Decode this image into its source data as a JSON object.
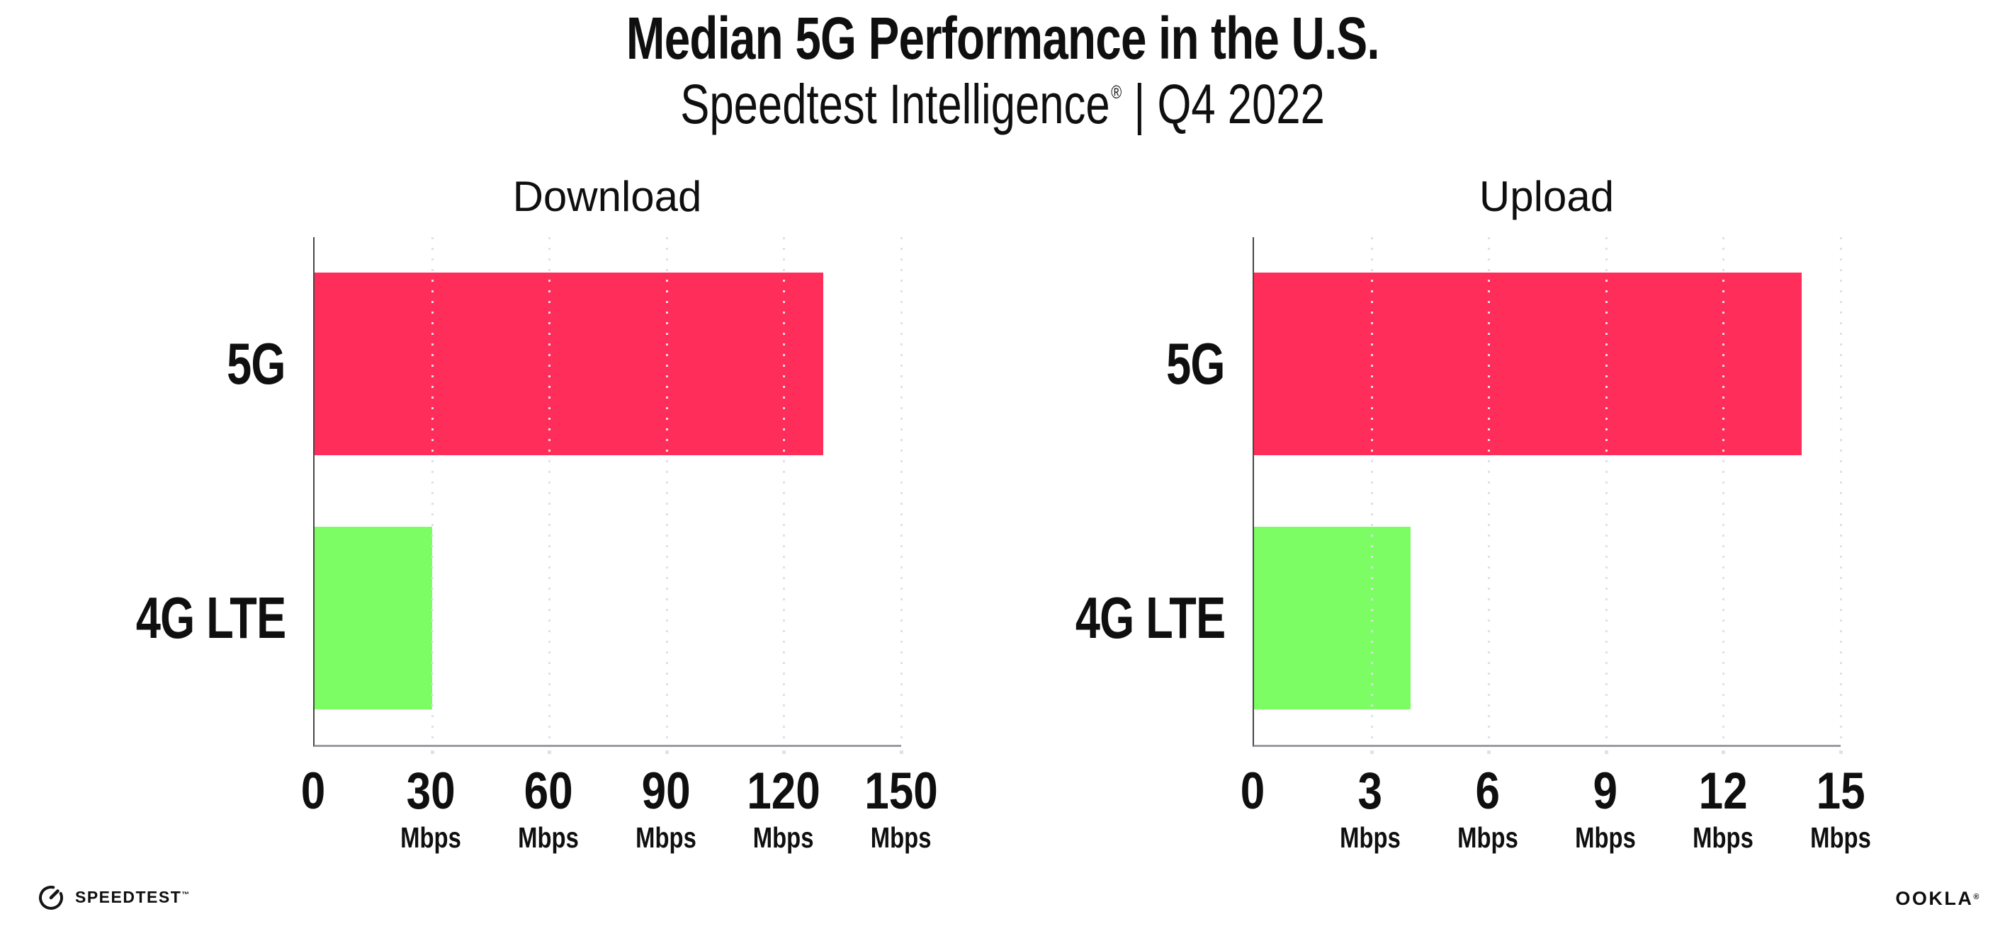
{
  "header": {
    "title": "Median 5G Performance in the U.S.",
    "subtitle": {
      "brand": "Speedtest Intelligence",
      "reg_mark": "®",
      "separator": "|",
      "period": "Q4 2022"
    }
  },
  "charts": [
    {
      "title": "Download",
      "categories": [
        "5G",
        "4G LTE"
      ],
      "ticks": [
        {
          "label": "0",
          "unit": ""
        },
        {
          "label": "30",
          "unit": "Mbps"
        },
        {
          "label": "60",
          "unit": "Mbps"
        },
        {
          "label": "90",
          "unit": "Mbps"
        },
        {
          "label": "120",
          "unit": "Mbps"
        },
        {
          "label": "150",
          "unit": "Mbps"
        }
      ]
    },
    {
      "title": "Upload",
      "categories": [
        "5G",
        "4G LTE"
      ],
      "ticks": [
        {
          "label": "0",
          "unit": ""
        },
        {
          "label": "3",
          "unit": "Mbps"
        },
        {
          "label": "6",
          "unit": "Mbps"
        },
        {
          "label": "9",
          "unit": "Mbps"
        },
        {
          "label": "12",
          "unit": "Mbps"
        },
        {
          "label": "15",
          "unit": "Mbps"
        }
      ]
    }
  ],
  "footer": {
    "speedtest_label": "SPEEDTEST",
    "speedtest_mark": "™",
    "ookla_label": "OOKLA",
    "ookla_mark": "®"
  },
  "colors": {
    "bar_5g": "#FF2D5A",
    "bar_4g_lte": "#7DFD64",
    "text": "#0F0F0F",
    "spine": "#474747",
    "axis_line": "#9A9AA2",
    "gridline": "#E0E0E9"
  },
  "chart_data": [
    {
      "type": "bar",
      "orientation": "horizontal",
      "title": "Download",
      "categories": [
        "5G",
        "4G LTE"
      ],
      "values": [
        130,
        30
      ],
      "unit": "Mbps",
      "xlim": [
        0,
        150
      ],
      "xticks": [
        0,
        30,
        60,
        90,
        120,
        150
      ],
      "grid": "vertical-dotted",
      "bar_colors": [
        "#FF2D5A",
        "#7DFD64"
      ]
    },
    {
      "type": "bar",
      "orientation": "horizontal",
      "title": "Upload",
      "categories": [
        "5G",
        "4G LTE"
      ],
      "values": [
        14,
        4
      ],
      "unit": "Mbps",
      "xlim": [
        0,
        15
      ],
      "xticks": [
        0,
        3,
        6,
        9,
        12,
        15
      ],
      "grid": "vertical-dotted",
      "bar_colors": [
        "#FF2D5A",
        "#7DFD64"
      ]
    }
  ]
}
